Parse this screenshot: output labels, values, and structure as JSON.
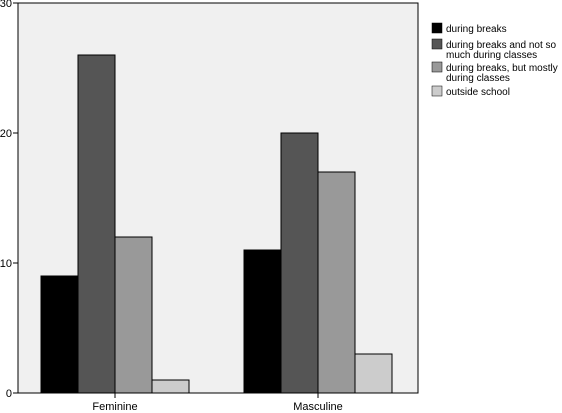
{
  "chart_data": {
    "type": "bar",
    "categories": [
      "Feminine",
      "Masculine"
    ],
    "series": [
      {
        "name": "during breaks",
        "values": [
          9,
          11
        ],
        "color": "#000000"
      },
      {
        "name": "during breaks and not so much during classes",
        "values": [
          26,
          20
        ],
        "color": "#555555"
      },
      {
        "name": "during breaks, but mostly during classes",
        "values": [
          12,
          17
        ],
        "color": "#999999"
      },
      {
        "name": "outside school",
        "values": [
          1,
          3
        ],
        "color": "#cccccc"
      }
    ],
    "legend_lines": [
      [
        "during breaks"
      ],
      [
        "during breaks and not so",
        "much during classes"
      ],
      [
        "during breaks, but mostly",
        "during classes"
      ],
      [
        "outside school"
      ]
    ],
    "yticks": [
      0,
      10,
      20,
      30
    ],
    "ylim": [
      0,
      30
    ],
    "title": "",
    "xlabel": "",
    "ylabel": "",
    "legend_position": "right",
    "plot_background": "#f0f0f0",
    "grid": false
  }
}
